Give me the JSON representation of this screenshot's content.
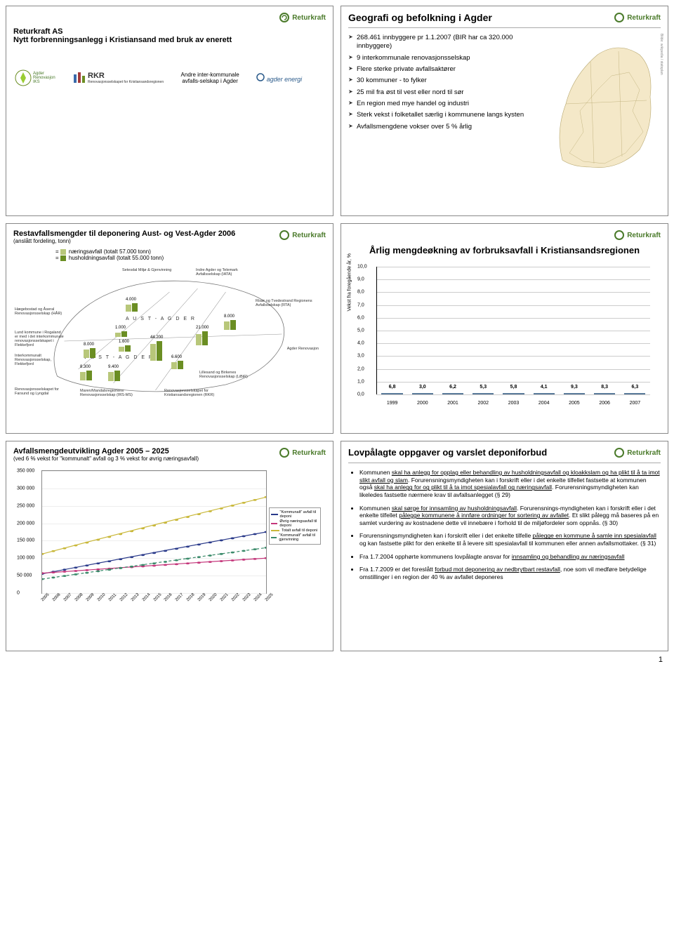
{
  "brand": "Returkraft",
  "brand_color": "#4a7a2a",
  "page_number": "1",
  "slide1": {
    "company": "Returkraft AS",
    "subtitle": "Nytt forbrenningsanlegg i Kristiansand med bruk av enerett",
    "andre": "Andre inter-kommunale avfalls-selskap i Agder",
    "partner_ag": "Agder Renovasjon IKS",
    "partner_rkr": "RKR",
    "partner_rkr_sub": "Renovasjonsselskapet for Kristiansandsregionen",
    "partner_energi": "agder energi"
  },
  "slide2": {
    "title": "Geografi og befolkning i Agder",
    "bullets": [
      "268.461 innbyggere pr 1.1.2007 (BIR har ca 320.000 innbyggere)",
      "9 interkommunale renovasjonsselskap",
      "Flere sterke private avfallsaktører",
      "30 kommuner  - to fylker",
      "25 mil fra øst til vest eller nord til sør",
      "En region med mye handel og industri",
      "Sterk vekst i folketallet særlig i kommunene langs kysten",
      "Avfallsmengdene vokser over 5 % årlig"
    ],
    "map_caption": "Bilde: wikipedia / statsplan"
  },
  "slide3": {
    "title": "Restavfallsmengder til deponering Aust- og Vest-Agder 2006",
    "subtitle": "(anslått fordeling, tonn)",
    "legend_yellow": "næringsavfall (totalt 57.000 tonn)",
    "legend_green": "husholdningsavfall (totalt 55.000 tonn)",
    "regions": {
      "haegebostad": "Hægebostad og Åseral Renovasjonsselskap (HÅR)",
      "lund": "Lund kommune i Rogaland er med i det interkommunale renovasjonsselskapet i Flekkefjord",
      "irs": "Interkommunalt Renovasjonsselskap, Flekkefjord",
      "rfl": "Renovasjonsselskapet for Farsund og Lyngdal",
      "mandal": "Maren/Mandalsregionens Renovasjonsselskap (IRS-MS)",
      "rks": "Renovasjonsselskapet for Kristiansandsregionen (RKR)",
      "libir": "Lillesand og Birkenes Renovasjonsselskap (LiBiR)",
      "agder_ren": "Agder Renovasjon",
      "rta": "Risør og Tvedestrand Regionens Avfallsselskap (RTA)",
      "setesdal": "Setesdal Miljø & Gjenvinning",
      "ifa": "Indre Agder og Telemark Avfallsselskap (IATA)"
    },
    "values": {
      "vest_a": "V   E   S   T   -   A   G   D   E   R",
      "aust_a": "A   U   S   T   -   A   G   D   E   R",
      "v1": "4.000",
      "v2": "1.000",
      "v3": "1.600",
      "v4": "8.000",
      "v5": "8.300",
      "v6": "9.400",
      "v7": "44.200",
      "v8": "6.600",
      "v9": "21.000",
      "v10": "8.000"
    }
  },
  "slide4": {
    "title": "Årlig mengdeøkning av forbruksavfall i Kristiansandsregionen",
    "ylabel": "Vekst fra foregående år, %",
    "ylim": [
      0,
      10
    ],
    "ytick_step": 1.0,
    "bar_color": "#8aa5c4",
    "bar_border": "#5a7a9a",
    "grid_color": "#cccccc",
    "categories": [
      "1999",
      "2000",
      "2001",
      "2002",
      "2003",
      "2004",
      "2005",
      "2006",
      "2007"
    ],
    "values": [
      6.8,
      3.0,
      6.2,
      5.3,
      5.8,
      4.1,
      9.3,
      8.3,
      6.3
    ]
  },
  "slide5": {
    "title": "Avfallsmengdeutvikling Agder 2005 – 2025",
    "subtitle": "(ved 6 % vekst for \"kommunalt\" avfall og 3 % vekst for øvrig næringsavfall)",
    "ylim": [
      0,
      350000
    ],
    "ytick_step": 50000,
    "yticks_fmt": [
      "0",
      "50 000",
      "100 000",
      "150 000",
      "200 000",
      "250 000",
      "300 000",
      "350 000"
    ],
    "xlim": [
      2005,
      2025
    ],
    "years": [
      "2005",
      "2006",
      "2007",
      "2008",
      "2009",
      "2010",
      "2011",
      "2012",
      "2013",
      "2014",
      "2015",
      "2016",
      "2017",
      "2018",
      "2019",
      "2020",
      "2021",
      "2022",
      "2023",
      "2024",
      "2025"
    ],
    "series": [
      {
        "name": "\"Kommunalt\" avfall til deponi",
        "color": "#2a3a8a",
        "dash": "0",
        "y0": 55000,
        "y1": 175000
      },
      {
        "name": "Øvrig næringsavfall til deponi",
        "color": "#c4357a",
        "dash": "0",
        "y0": 57000,
        "y1": 100000
      },
      {
        "name": "Totalt avfall til deponi",
        "color": "#c9b83a",
        "dash": "0",
        "y0": 112000,
        "y1": 275000
      },
      {
        "name": "\"Kommunalt\" avfall til gjenvinning",
        "color": "#3a8a6a",
        "dash": "4 3",
        "y0": 40000,
        "y1": 130000
      }
    ]
  },
  "slide6": {
    "title": "Lovpålagte oppgaver og varslet deponiforbud",
    "bullets": [
      "Kommunen <u>skal ha anlegg for opplag eller behandling av husholdningsavfall og kloakkslam og ha plikt til å ta imot slikt avfall og slam</u>. Forurensningsmyndigheten kan i forskrift eller i det enkelte tilfellet fastsette at kommunen også <u>skal ha anlegg for og plikt til å ta imot spesialavfall og næringsavfall</u>. Forurensningsmyndigheten kan likeledes fastsette nærmere krav til avfallsanlegget (§ 29)",
      "Kommunen <u>skal sørge for innsamling av husholdningsavfall</u>. Forurensnings-myndigheten kan i forskrift eller i det enkelte tilfellet <u>pålegge kommunene å innføre ordninger for sortering av avfallet</u>. Et slikt pålegg må baseres på en samlet vurdering av kostnadene dette vil innebære i forhold til de miljøfordeler som oppnås. (§ 30)",
      "Forurensningsmyndigheten kan i forskrift eller i det enkelte tilfelle <u>pålegge en kommune å samle inn spesialavfall</u> og kan fastsette plikt for den enkelte til å levere sitt spesialavfall til kommunen eller annen avfallsmottaker. (§ 31)",
      "Fra 1.7.2004 opphørte kommunens lovpålagte ansvar for <u>innsamling og behandling av næringsavfall</u>",
      "Fra 1.7.2009 er det foreslått  <u>forbud mot deponering av nedbrytbart restavfall</u>, noe som vil medføre betydelige omstillinger i en region der 40 % av avfallet deponeres"
    ]
  }
}
